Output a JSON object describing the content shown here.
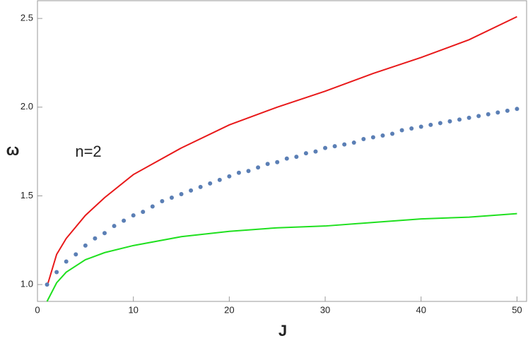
{
  "chart_data": {
    "type": "line",
    "x_label": "J",
    "y_label": "ω",
    "annotation": "n=2",
    "xlim": [
      0,
      51
    ],
    "ylim": [
      0.905,
      2.6
    ],
    "xticks": [
      0,
      10,
      20,
      30,
      40,
      50
    ],
    "yticks": [
      {
        "value": 1,
        "label": "1.0"
      },
      {
        "value": 1.5,
        "label": "1.5"
      },
      {
        "value": 2,
        "label": "2.0"
      },
      {
        "value": 2.5,
        "label": "2.5"
      }
    ],
    "series": [
      {
        "style": "line",
        "color": "#e8191a",
        "x": [
          1,
          2,
          3,
          5,
          7,
          10,
          15,
          20,
          25,
          30,
          35,
          40,
          45,
          50
        ],
        "values": [
          0.99,
          1.17,
          1.26,
          1.39,
          1.49,
          1.62,
          1.77,
          1.9,
          2.0,
          2.09,
          2.19,
          2.28,
          2.38,
          2.51
        ]
      },
      {
        "style": "line",
        "color": "#1fe01f",
        "x": [
          1,
          2,
          3,
          5,
          7,
          10,
          15,
          20,
          25,
          30,
          35,
          40,
          45,
          50
        ],
        "values": [
          0.905,
          1.01,
          1.07,
          1.14,
          1.18,
          1.22,
          1.27,
          1.3,
          1.32,
          1.33,
          1.35,
          1.37,
          1.38,
          1.4
        ]
      },
      {
        "style": "dots",
        "color": "#5b7fb5",
        "x": [
          1,
          2,
          3,
          4,
          5,
          6,
          7,
          8,
          9,
          10,
          11,
          12,
          13,
          14,
          15,
          16,
          17,
          18,
          19,
          20,
          21,
          22,
          23,
          24,
          25,
          26,
          27,
          28,
          29,
          30,
          31,
          32,
          33,
          34,
          35,
          36,
          37,
          38,
          39,
          40,
          41,
          42,
          43,
          44,
          45,
          46,
          47,
          48,
          49,
          50
        ],
        "values": [
          1.0,
          1.07,
          1.13,
          1.17,
          1.22,
          1.26,
          1.29,
          1.33,
          1.36,
          1.39,
          1.41,
          1.44,
          1.47,
          1.49,
          1.51,
          1.53,
          1.55,
          1.57,
          1.59,
          1.61,
          1.63,
          1.64,
          1.66,
          1.68,
          1.69,
          1.71,
          1.72,
          1.74,
          1.75,
          1.77,
          1.78,
          1.79,
          1.8,
          1.82,
          1.83,
          1.84,
          1.85,
          1.87,
          1.88,
          1.89,
          1.9,
          1.91,
          1.92,
          1.93,
          1.94,
          1.95,
          1.96,
          1.97,
          1.98,
          1.99
        ]
      }
    ]
  }
}
